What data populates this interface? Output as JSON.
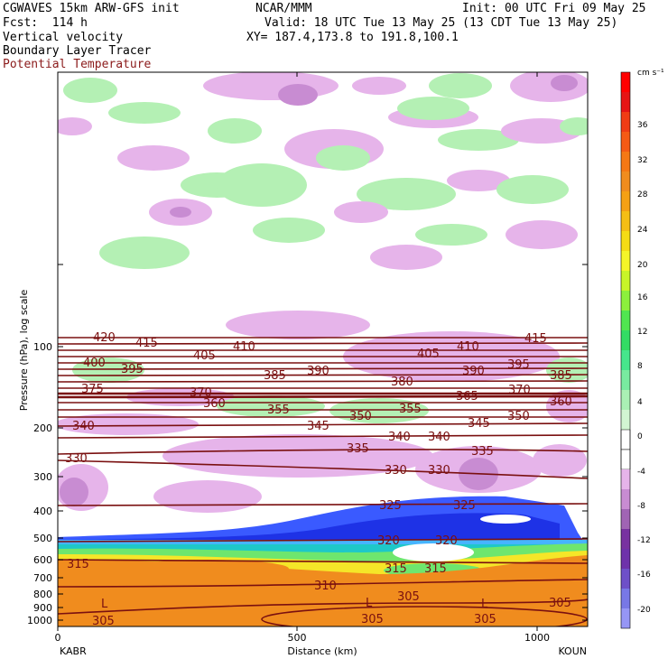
{
  "header": {
    "left_line1": "CGWAVES 15km ARW-GFS init",
    "left_line2": "Fcst:  114 h",
    "left_line3": "Vertical velocity",
    "left_line4": "Boundary Layer Tracer",
    "left_line5": "Potential Temperature",
    "center_line1": "NCAR/MMM",
    "right_line1": "Init: 00 UTC Fri 09 May 25",
    "right_line2": "Valid: 18 UTC Tue 13 May 25 (13 CDT Tue 13 May 25)",
    "center_line3": "XY= 187.4,173.8 to 191.8,100.1"
  },
  "chart_data": {
    "type": "heatmap",
    "title": "Vertical velocity",
    "xlabel": "Distance (km)",
    "ylabel": "Pressure (hPa), log scale",
    "x_ticks": [
      "0",
      "500",
      "1000"
    ],
    "x_endpoints": [
      "KABR",
      "KOUN"
    ],
    "xlim": [
      0,
      1100
    ],
    "y_ticks": [
      "100",
      "200",
      "300",
      "400",
      "500",
      "600",
      "700",
      "800",
      "900",
      "1000"
    ],
    "y_scale": "log",
    "colorbar": {
      "unit": "cm s⁻¹",
      "labels": [
        "36",
        "32",
        "28",
        "24",
        "20",
        "16",
        "12",
        "8",
        "4",
        "0",
        "-4",
        "-8",
        "-12",
        "-16",
        "-20"
      ]
    },
    "contour_labels": [
      "420",
      "415",
      "405",
      "410",
      "405",
      "410",
      "415",
      "400",
      "395",
      "385",
      "390",
      "380",
      "390",
      "395",
      "385",
      "375",
      "370",
      "370",
      "365",
      "360",
      "360",
      "355",
      "350",
      "355",
      "350",
      "340",
      "345",
      "345",
      "340",
      "340",
      "335",
      "335",
      "330",
      "330",
      "330",
      "325",
      "325",
      "320",
      "320",
      "315",
      "315",
      "315",
      "310",
      "305",
      "305",
      "305",
      "305",
      "305"
    ],
    "low_markers": [
      "L",
      "L",
      "L"
    ],
    "colors": {
      "theta_contour": "#7a1010",
      "boundary_layer": "#f08c1e",
      "updraft_light": "#b4f0b4",
      "downdraft_light": "#e6b4ea",
      "downdraft_mid": "#c88cd2"
    }
  }
}
